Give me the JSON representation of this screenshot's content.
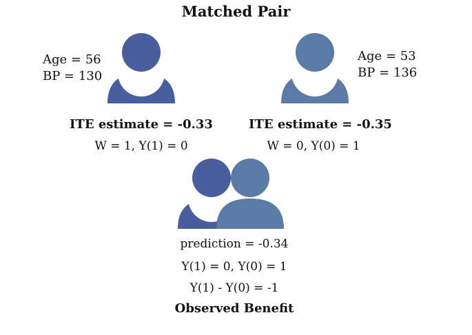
{
  "title": "Matched Pair",
  "colors": {
    "treated": "#4a5e9d",
    "control": "#5b7aa6",
    "text": "#111111"
  },
  "patient_a": {
    "icon": "person-icon",
    "age": "Age = 56",
    "bp": "BP = 130",
    "ite": "ITE estimate = -0.33",
    "outcome": "W = 1, Y(1) = 0"
  },
  "patient_b": {
    "icon": "person-icon",
    "age": "Age = 53",
    "bp": "BP = 136",
    "ite": "ITE estimate = -0.35",
    "outcome": "W = 0, Y(0) = 1"
  },
  "pair": {
    "icon": "matched-pair-icon",
    "prediction": "prediction = -0.34",
    "outcomes": "Y(1) = 0, Y(0) = 1",
    "difference": "Y(1) - Y(0) = -1",
    "label": "Observed Benefit"
  }
}
